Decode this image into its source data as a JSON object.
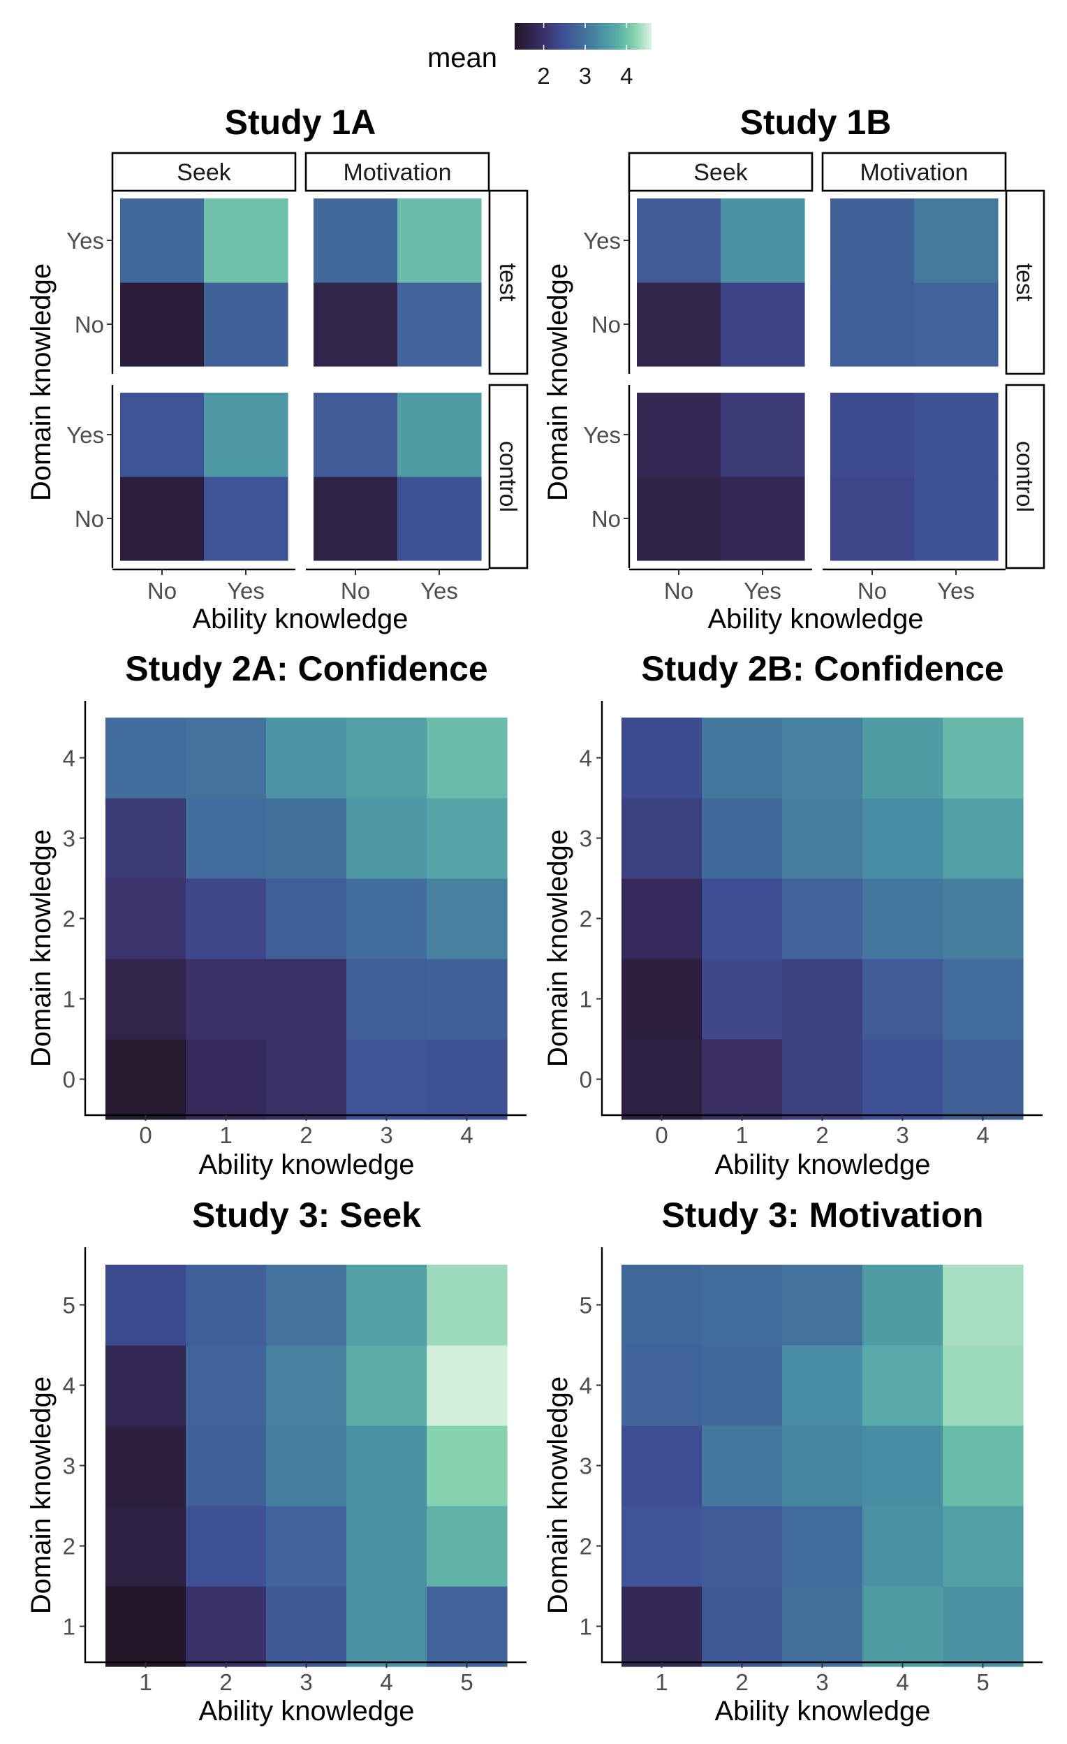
{
  "legend": {
    "title": "mean",
    "ticks": [
      2,
      3,
      4
    ],
    "range": [
      1.3,
      4.6
    ],
    "colormap": "mako"
  },
  "chart_data": [
    {
      "id": "study1a",
      "type": "heatmap",
      "title": "Study 1A",
      "xlabel": "Ability knowledge",
      "ylabel": "Domain knowledge",
      "x_categories": [
        "No",
        "Yes"
      ],
      "y_categories": [
        "No",
        "Yes"
      ],
      "facet_columns": [
        "Seek",
        "Motivation"
      ],
      "facet_rows": [
        "test",
        "control"
      ],
      "cells": {
        "test": {
          "Seek": [
            [
              1.5,
              2.75
            ],
            [
              2.85,
              4.0
            ]
          ],
          "Motivation": [
            [
              1.7,
              2.8
            ],
            [
              2.85,
              3.95
            ]
          ]
        },
        "control": {
          "Seek": [
            [
              1.55,
              2.55
            ],
            [
              2.55,
              3.5
            ]
          ],
          "Motivation": [
            [
              1.65,
              2.5
            ],
            [
              2.65,
              3.55
            ]
          ]
        }
      }
    },
    {
      "id": "study1b",
      "type": "heatmap",
      "title": "Study 1B",
      "xlabel": "Ability knowledge",
      "ylabel": "Domain knowledge",
      "x_categories": [
        "No",
        "Yes"
      ],
      "y_categories": [
        "No",
        "Yes"
      ],
      "facet_columns": [
        "Seek",
        "Motivation"
      ],
      "facet_rows": [
        "test",
        "control"
      ],
      "cells": {
        "test": {
          "Seek": [
            [
              1.7,
              2.3
            ],
            [
              2.65,
              3.4
            ]
          ],
          "Motivation": [
            [
              2.7,
              2.8
            ],
            [
              2.75,
              3.1
            ]
          ]
        },
        "control": {
          "Seek": [
            [
              1.65,
              1.8
            ],
            [
              1.8,
              2.15
            ]
          ],
          "Motivation": [
            [
              2.35,
              2.5
            ],
            [
              2.4,
              2.5
            ]
          ]
        }
      }
    },
    {
      "id": "study2a",
      "type": "heatmap",
      "title": "Study 2A: Confidence",
      "xlabel": "Ability knowledge",
      "ylabel": "Domain knowledge",
      "x_categories": [
        "0",
        "1",
        "2",
        "3",
        "4"
      ],
      "y_categories": [
        "0",
        "1",
        "2",
        "3",
        "4"
      ],
      "values": [
        [
          1.4,
          1.85,
          2.0,
          2.55,
          2.5
        ],
        [
          1.7,
          2.0,
          2.0,
          2.7,
          2.75
        ],
        [
          2.05,
          2.35,
          2.7,
          2.9,
          3.2
        ],
        [
          2.15,
          2.9,
          2.95,
          3.5,
          3.65
        ],
        [
          2.9,
          3.0,
          3.45,
          3.6,
          3.95
        ]
      ]
    },
    {
      "id": "study2b",
      "type": "heatmap",
      "title": "Study 2B: Confidence",
      "xlabel": "Ability knowledge",
      "ylabel": "Domain knowledge",
      "x_categories": [
        "0",
        "1",
        "2",
        "3",
        "4"
      ],
      "y_categories": [
        "0",
        "1",
        "2",
        "3",
        "4"
      ],
      "values": [
        [
          1.6,
          1.95,
          2.25,
          2.5,
          2.75
        ],
        [
          1.55,
          2.35,
          2.25,
          2.65,
          2.9
        ],
        [
          1.85,
          2.45,
          2.8,
          3.05,
          3.15
        ],
        [
          2.25,
          2.85,
          3.15,
          3.35,
          3.6
        ],
        [
          2.4,
          3.05,
          3.2,
          3.55,
          3.9
        ]
      ]
    },
    {
      "id": "study3seek",
      "type": "heatmap",
      "title": "Study 3: Seek",
      "xlabel": "Ability knowledge",
      "ylabel": "Domain knowledge",
      "x_categories": [
        "1",
        "2",
        "3",
        "4",
        "5"
      ],
      "y_categories": [
        "1",
        "2",
        "3",
        "4",
        "5"
      ],
      "values": [
        [
          1.3,
          2.0,
          2.6,
          3.4,
          2.8
        ],
        [
          1.6,
          2.5,
          2.8,
          3.4,
          3.85
        ],
        [
          1.55,
          2.75,
          3.15,
          3.4,
          4.2
        ],
        [
          1.8,
          2.8,
          3.2,
          3.8,
          4.55
        ],
        [
          2.4,
          2.7,
          3.0,
          3.6,
          4.3
        ]
      ]
    },
    {
      "id": "study3motivation",
      "type": "heatmap",
      "title": "Study 3: Motivation",
      "xlabel": "Ability knowledge",
      "ylabel": "Domain knowledge",
      "x_categories": [
        "1",
        "2",
        "3",
        "4",
        "5"
      ],
      "y_categories": [
        "1",
        "2",
        "3",
        "4",
        "5"
      ],
      "values": [
        [
          1.8,
          2.6,
          2.95,
          3.55,
          3.4
        ],
        [
          2.55,
          2.65,
          2.9,
          3.4,
          3.6
        ],
        [
          2.45,
          3.05,
          3.25,
          3.35,
          3.95
        ],
        [
          2.8,
          2.85,
          3.35,
          3.75,
          4.3
        ],
        [
          2.85,
          2.9,
          3.0,
          3.55,
          4.35
        ]
      ]
    }
  ]
}
